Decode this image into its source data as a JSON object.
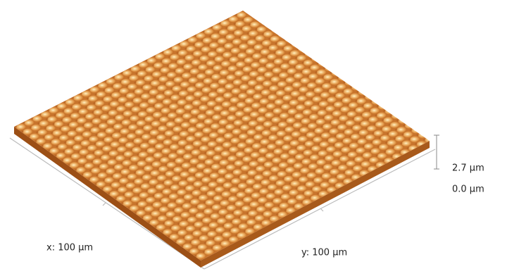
{
  "scale": {
    "max_label": "2.7 μm",
    "min_label": "0.0 μm"
  },
  "axes": {
    "x_label": "x: 100 μm",
    "y_label": "y: 100 μm"
  }
}
